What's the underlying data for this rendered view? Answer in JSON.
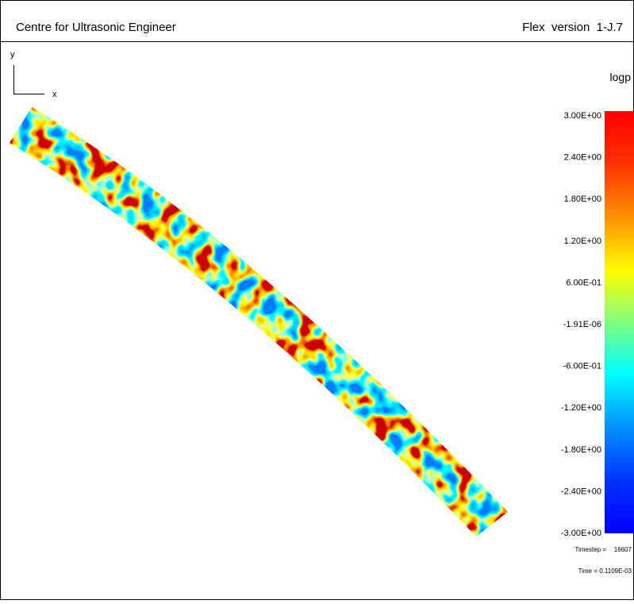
{
  "header": {
    "title": "Centre for Ultrasonic Engineer",
    "version": "Flex  version  1-J.7"
  },
  "axes": {
    "y": "y",
    "x": "x"
  },
  "legend": {
    "title": "logp",
    "labels": [
      "3.00E+00",
      "2.40E+00",
      "1.80E+00",
      "1.20E+00",
      "6.00E-01",
      "-1.91E-06",
      "-6.00E-01",
      "-1.20E+00",
      "-1.80E+00",
      "-2.40E+00",
      "-3.00E+00"
    ]
  },
  "footer": {
    "timestep_label": "Timestep =",
    "timestep": "16607",
    "time": "Time = 0.1109E-03"
  }
}
